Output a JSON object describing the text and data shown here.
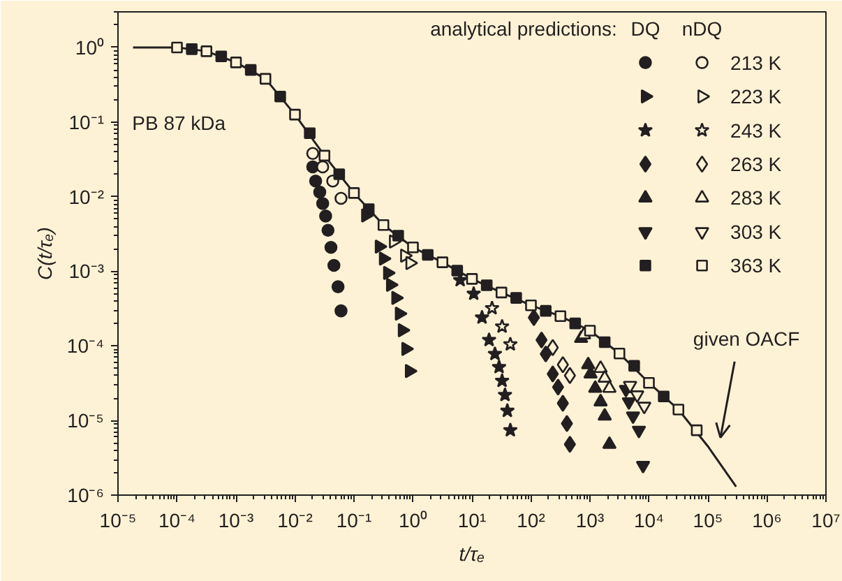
{
  "chart_data": {
    "type": "scatter",
    "log": "xy",
    "xlabel": "t/τₑ",
    "ylabel": "C(t/τₑ)",
    "legend": "top right",
    "legend_title": "analytical predictions:",
    "annotations": [
      "PB 87 kDa",
      "DQ",
      "nDQ",
      "given OACF"
    ],
    "xlim": [
      1e-05,
      10000000.0
    ],
    "ylim": [
      1e-06,
      3
    ],
    "xticks": [
      {
        "value": 1e-05,
        "label": "10⁻⁵"
      },
      {
        "value": 0.0001,
        "label": "10⁻⁴"
      },
      {
        "value": 0.001,
        "label": "10⁻³"
      },
      {
        "value": 0.01,
        "label": "10⁻²"
      },
      {
        "value": 0.1,
        "label": "10⁻¹"
      },
      {
        "value": 1,
        "label": "10⁰"
      },
      {
        "value": 10,
        "label": "10¹"
      },
      {
        "value": 100,
        "label": "10²"
      },
      {
        "value": 1000,
        "label": "10³"
      },
      {
        "value": 10000,
        "label": "10⁴"
      },
      {
        "value": 100000,
        "label": "10⁵"
      },
      {
        "value": 1000000,
        "label": "10⁶"
      },
      {
        "value": 10000000,
        "label": "10⁷"
      }
    ],
    "yticks": [
      {
        "value": 1e-06,
        "label": "10⁻⁶"
      },
      {
        "value": 1e-05,
        "label": "10⁻⁵"
      },
      {
        "value": 0.0001,
        "label": "10⁻⁴"
      },
      {
        "value": 0.001,
        "label": "10⁻³"
      },
      {
        "value": 0.01,
        "label": "10⁻²"
      },
      {
        "value": 0.1,
        "label": "10⁻¹"
      },
      {
        "value": 1,
        "label": "10⁰"
      }
    ],
    "series": [
      {
        "type": "line",
        "color": "#231f20",
        "x": [
          1.8e-05,
          0.0001,
          0.000316,
          0.001,
          0.00316,
          0.01,
          0.0316,
          0.1,
          0.316,
          1,
          3.16,
          10,
          31.6,
          100,
          316,
          1000,
          3162,
          10000,
          31623,
          100000,
          300000
        ],
        "values": [
          1.0,
          1.0,
          0.89,
          0.63,
          0.38,
          0.126,
          0.0355,
          0.0112,
          0.00417,
          0.00209,
          0.00132,
          0.00079,
          0.00052,
          0.00035,
          0.00025,
          0.00016,
          7.9e-05,
          3.2e-05,
          1.4e-05,
          4.5e-06,
          1.3e-06
        ]
      },
      {
        "color": "#231f20",
        "x": [
          0.02,
          0.0224,
          0.0263,
          0.0295,
          0.0331,
          0.0363,
          0.0407,
          0.0457,
          0.0537,
          0.0603
        ],
        "values": [
          0.0251,
          0.0162,
          0.0115,
          0.0081,
          0.0055,
          0.00355,
          0.00209,
          0.0012,
          0.00062,
          0.000295
        ]
      },
      {
        "name": "213 K",
        "color": "#231f20",
        "x": [
          0.02,
          0.0295,
          0.0437,
          0.0603
        ],
        "values": [
          0.038,
          0.0251,
          0.0162,
          0.0095
        ]
      },
      {
        "color": "#231f20",
        "x": [
          0.158,
          0.269,
          0.316,
          0.372,
          0.417,
          0.513,
          0.589,
          0.661,
          0.759,
          0.871
        ],
        "values": [
          0.0056,
          0.00214,
          0.00148,
          0.00095,
          0.00066,
          0.00044,
          0.00027,
          0.000162,
          9.1e-05,
          4.6e-05
        ]
      },
      {
        "name": "223 K",
        "color": "#231f20",
        "x": [
          0.468,
          0.724,
          0.891
        ],
        "values": [
          0.00251,
          0.00162,
          0.00129
        ]
      },
      {
        "color": "#231f20",
        "x": [
          6.31,
          10.7,
          14.8,
          19.5,
          24.5,
          28.8,
          32.4,
          36.3,
          39.8,
          44.7
        ],
        "values": [
          0.00076,
          0.0005,
          0.00024,
          0.00012,
          7.8e-05,
          5.2e-05,
          3.4e-05,
          2.2e-05,
          1.35e-05,
          7.4e-06
        ]
      },
      {
        "name": "243 K",
        "color": "#231f20",
        "x": [
          21.9,
          32.4,
          44.7
        ],
        "values": [
          0.00032,
          0.000182,
          0.000105
        ]
      },
      {
        "color": "#231f20",
        "x": [
          112,
          151,
          178,
          234,
          288,
          347,
          407,
          457
        ],
        "values": [
          0.00024,
          0.00012,
          7.8e-05,
          4.2e-05,
          2.8e-05,
          1.7e-05,
          9.1e-06,
          4.8e-06
        ]
      },
      {
        "name": "263 K",
        "color": "#231f20",
        "x": [
          234,
          347,
          457
        ],
        "values": [
          9.5e-05,
          5.6e-05,
          4e-05
        ]
      },
      {
        "color": "#231f20",
        "x": [
          708,
          933,
          1023,
          1230,
          1514,
          1778,
          2138
        ],
        "values": [
          0.000126,
          5.6e-05,
          4.2e-05,
          2.7e-05,
          1.78e-05,
          1.15e-05,
          4.8e-06
        ]
      },
      {
        "name": "283 K",
        "color": "#231f20",
        "x": [
          794,
          1514,
          1778,
          2138
        ],
        "values": [
          0.000141,
          5e-05,
          3.7e-05,
          2.7e-05
        ]
      },
      {
        "color": "#231f20",
        "x": [
          4074,
          4571,
          5370,
          6761,
          7943
        ],
        "values": [
          2.6e-05,
          1.78e-05,
          1.15e-05,
          7.4e-06,
          2.5e-06
        ]
      },
      {
        "name": "303 K",
        "color": "#231f20",
        "x": [
          4786,
          6310,
          8318
        ],
        "values": [
          2.95e-05,
          2.2e-05,
          1.55e-05
        ]
      },
      {
        "color": "#231f20",
        "x": [
          0.000178,
          0.000562,
          0.00178,
          0.00562,
          0.0178,
          0.0562,
          0.178,
          0.562,
          1.78,
          5.62,
          17.8,
          56.2,
          178,
          562,
          1778,
          5623,
          17783
        ],
        "values": [
          0.95,
          0.76,
          0.5,
          0.22,
          0.071,
          0.02,
          0.0068,
          0.003,
          0.00166,
          0.00102,
          0.00065,
          0.00044,
          0.000295,
          0.0002,
          0.000112,
          5.4e-05,
          2.1e-05
        ]
      },
      {
        "name": "363 K",
        "color": "#231f20",
        "x": [
          0.0001,
          0.000316,
          0.001,
          0.00316,
          0.01,
          0.0316,
          0.1,
          0.316,
          1,
          3.16,
          10,
          31.6,
          100,
          316,
          1000,
          3162,
          10000,
          31623,
          64565
        ],
        "values": [
          1.0,
          0.89,
          0.63,
          0.38,
          0.126,
          0.0355,
          0.0112,
          0.00417,
          0.00209,
          0.00132,
          0.00079,
          0.00052,
          0.00035,
          0.00025,
          0.00016,
          7.9e-05,
          3.2e-05,
          1.4e-05,
          7.4e-06
        ]
      }
    ]
  }
}
